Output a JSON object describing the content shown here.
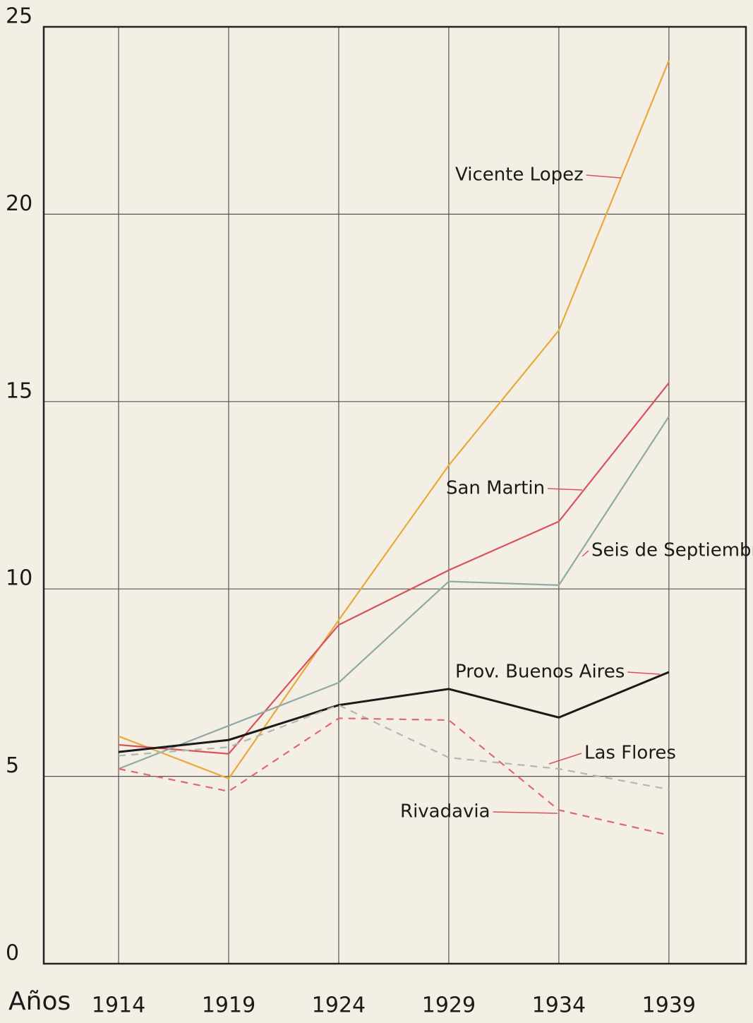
{
  "chart_data": {
    "type": "line",
    "x_label": "Años",
    "x": [
      1914,
      1919,
      1924,
      1929,
      1934,
      1939
    ],
    "xlim": [
      1910.6,
      1942.5
    ],
    "xticks": [
      1914,
      1919,
      1924,
      1929,
      1934,
      1939
    ],
    "ylim": [
      0,
      25
    ],
    "yticks": [
      0,
      5,
      10,
      15,
      20,
      25
    ],
    "grid": true,
    "series": [
      {
        "name": "Vicente Lopez",
        "color": "#e8a93a",
        "dash": false,
        "values": [
          6.07,
          4.94,
          9.17,
          13.3,
          16.9,
          24.1
        ]
      },
      {
        "name": "San Martin",
        "color": "#d9525a",
        "dash": false,
        "values": [
          5.84,
          5.6,
          9.04,
          10.5,
          11.8,
          15.5
        ]
      },
      {
        "name": "Seis de Septiembre",
        "color": "#8fa9a6",
        "dash": false,
        "values": [
          5.2,
          6.35,
          7.5,
          10.2,
          10.1,
          14.6
        ]
      },
      {
        "name": "Prov. Buenos Aires",
        "color": "#1a1a1a",
        "dash": false,
        "values": [
          5.65,
          5.97,
          6.9,
          7.33,
          6.57,
          7.78
        ]
      },
      {
        "name": "Las Flores",
        "color": "#b0b8b0",
        "dash": true,
        "values": [
          5.55,
          5.78,
          6.9,
          5.5,
          5.2,
          4.65
        ]
      },
      {
        "name": "Rivadavia",
        "color": "#e06870",
        "dash": true,
        "values": [
          5.2,
          4.6,
          6.55,
          6.5,
          4.1,
          3.43
        ]
      }
    ]
  }
}
